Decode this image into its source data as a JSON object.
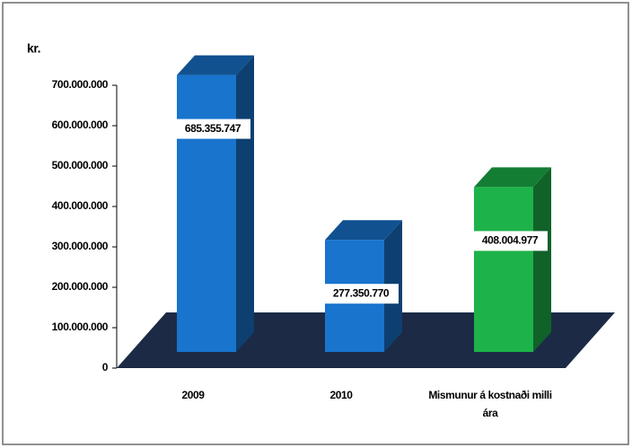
{
  "chart_data": {
    "type": "bar3d",
    "y_label": "kr.",
    "categories": [
      "2009",
      "2010",
      "Mismunur á kostnaði milli ára"
    ],
    "values": [
      685355747,
      277350770,
      408004977
    ],
    "value_labels": [
      "685.355.747",
      "277.350.770",
      "408.004.977"
    ],
    "colors": [
      "#1874cd",
      "#1874cd",
      "#1db34a"
    ],
    "floor_color": "#1c2a45",
    "ylim": [
      0,
      700000000
    ],
    "yticks": [
      0,
      {
        "value": 100000000,
        "label": "100.000.000"
      },
      {
        "value": 200000000,
        "label": "200.000.000"
      },
      {
        "value": 300000000,
        "label": "300.000.000"
      },
      {
        "value": 400000000,
        "label": "400.000.000"
      },
      {
        "value": 500000000,
        "label": "500.000.000"
      },
      {
        "value": 600000000,
        "label": "600.000.000"
      },
      {
        "value": 700000000,
        "label": "700.000.000"
      }
    ]
  }
}
